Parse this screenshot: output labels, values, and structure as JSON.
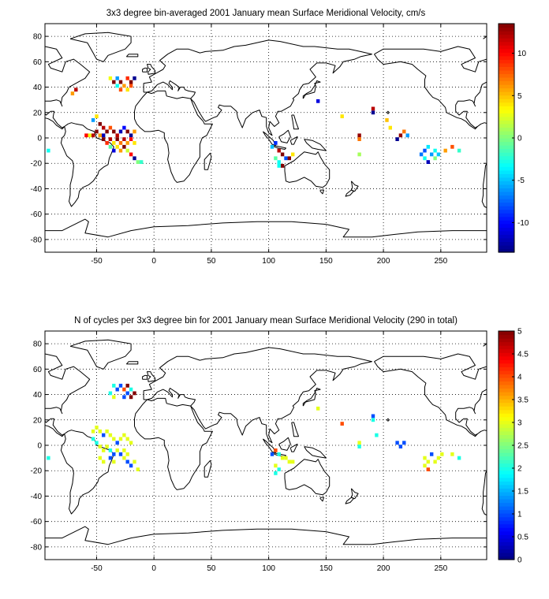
{
  "chart_data": [
    {
      "type": "heatmap",
      "title": "3x3 degree bin-averaged 2001 January mean Surface Meridional Velocity, cm/s",
      "xlabel": "",
      "ylabel": "",
      "xlim": [
        -95,
        290
      ],
      "ylim": [
        -90,
        90
      ],
      "xticks": [
        -50,
        0,
        50,
        100,
        150,
        200,
        250
      ],
      "yticks": [
        -80,
        -60,
        -40,
        -20,
        0,
        20,
        40,
        60,
        80
      ],
      "grid": true,
      "colorbar": {
        "range": [
          -13.5,
          13.5
        ],
        "ticks": [
          -10,
          -5,
          0,
          5,
          10
        ],
        "colormap": "jet"
      },
      "bin_size_deg": 3,
      "cells": [
        [
          -92,
          -10,
          -3
        ],
        [
          -68,
          38,
          12
        ],
        [
          -71,
          35,
          6
        ],
        [
          -38,
          47,
          3
        ],
        [
          -35,
          44,
          14
        ],
        [
          -32,
          47,
          -6
        ],
        [
          -29,
          44,
          14
        ],
        [
          -26,
          41,
          6
        ],
        [
          -32,
          41,
          -3
        ],
        [
          -29,
          38,
          8
        ],
        [
          -23,
          47,
          9
        ],
        [
          -20,
          44,
          14
        ],
        [
          -17,
          47,
          -13
        ],
        [
          -23,
          38,
          4
        ],
        [
          -20,
          41,
          8
        ],
        [
          -50,
          17,
          4
        ],
        [
          -53,
          14,
          -6
        ],
        [
          -47,
          11,
          14
        ],
        [
          -44,
          8,
          12
        ],
        [
          -50,
          5,
          14
        ],
        [
          -53,
          2,
          12
        ],
        [
          -56,
          2,
          3
        ],
        [
          -59,
          2,
          10
        ],
        [
          -47,
          2,
          6
        ],
        [
          -44,
          2,
          -12
        ],
        [
          -41,
          5,
          14
        ],
        [
          -38,
          8,
          8
        ],
        [
          -35,
          5,
          14
        ],
        [
          -32,
          2,
          12
        ],
        [
          -29,
          5,
          -12
        ],
        [
          -26,
          8,
          -10
        ],
        [
          -23,
          5,
          14
        ],
        [
          -20,
          2,
          -13
        ],
        [
          -17,
          5,
          6
        ],
        [
          -44,
          -1,
          14
        ],
        [
          -41,
          -4,
          9
        ],
        [
          -38,
          -1,
          12
        ],
        [
          -35,
          -4,
          4
        ],
        [
          -32,
          -1,
          14
        ],
        [
          -29,
          -4,
          7
        ],
        [
          -26,
          -1,
          12
        ],
        [
          -23,
          -4,
          6
        ],
        [
          -20,
          -1,
          10
        ],
        [
          -17,
          -4,
          4
        ],
        [
          -38,
          -7,
          -1
        ],
        [
          -35,
          -10,
          -11
        ],
        [
          -32,
          -7,
          4
        ],
        [
          -29,
          -10,
          6
        ],
        [
          -26,
          -7,
          14
        ],
        [
          -23,
          -10,
          2
        ],
        [
          -20,
          -13,
          10
        ],
        [
          -17,
          -16,
          -13
        ],
        [
          -14,
          -19,
          0
        ],
        [
          -11,
          -19,
          -2
        ],
        [
          103,
          -7,
          -5
        ],
        [
          106,
          -4,
          -9
        ],
        [
          109,
          -10,
          12
        ],
        [
          112,
          -13,
          14
        ],
        [
          115,
          -16,
          -8
        ],
        [
          118,
          -16,
          14
        ],
        [
          121,
          -13,
          4
        ],
        [
          106,
          -16,
          -1
        ],
        [
          109,
          -19,
          -3
        ],
        [
          112,
          -22,
          14
        ],
        [
          109,
          -22,
          -3
        ],
        [
          143,
          29,
          -11
        ],
        [
          164,
          17,
          4
        ],
        [
          179,
          2,
          13
        ],
        [
          179,
          -1,
          7
        ],
        [
          179,
          -13,
          1
        ],
        [
          191,
          23,
          12
        ],
        [
          191,
          20,
          -13
        ],
        [
          203,
          14,
          5
        ],
        [
          206,
          8,
          4
        ],
        [
          212,
          -1,
          -13
        ],
        [
          215,
          2,
          13
        ],
        [
          221,
          2,
          -6
        ],
        [
          218,
          5,
          7
        ],
        [
          233,
          -13,
          -7
        ],
        [
          236,
          -10,
          -8
        ],
        [
          239,
          -7,
          -4
        ],
        [
          236,
          -16,
          -3
        ],
        [
          239,
          -19,
          -12
        ],
        [
          242,
          -13,
          -6
        ],
        [
          245,
          -10,
          -3
        ],
        [
          248,
          -13,
          -5
        ],
        [
          245,
          -16,
          0
        ],
        [
          254,
          -10,
          6
        ],
        [
          260,
          -7,
          8
        ],
        [
          266,
          -10,
          -2
        ]
      ]
    },
    {
      "type": "heatmap",
      "title": "N of cycles per 3x3 degree bin for 2001 January mean Surface Meridional Velocity (290 in total)",
      "xlabel": "",
      "ylabel": "",
      "xlim": [
        -95,
        290
      ],
      "ylim": [
        -90,
        90
      ],
      "xticks": [
        -50,
        0,
        50,
        100,
        150,
        200,
        250
      ],
      "yticks": [
        -80,
        -60,
        -40,
        -20,
        0,
        20,
        40,
        60,
        80
      ],
      "grid": true,
      "colorbar": {
        "range": [
          0,
          5
        ],
        "ticks": [
          0,
          0.5,
          1,
          1.5,
          2,
          2.5,
          3,
          3.5,
          4,
          4.5,
          5
        ],
        "colormap": "jet"
      },
      "bin_size_deg": 3,
      "cells": [
        [
          -92,
          -10,
          2
        ],
        [
          -35,
          47,
          2
        ],
        [
          -32,
          44,
          1
        ],
        [
          -29,
          47,
          1
        ],
        [
          -26,
          44,
          4
        ],
        [
          -23,
          41,
          1
        ],
        [
          -20,
          44,
          2
        ],
        [
          -23,
          47,
          5
        ],
        [
          -20,
          38,
          5
        ],
        [
          -38,
          41,
          2
        ],
        [
          -35,
          38,
          3
        ],
        [
          -26,
          38,
          1
        ],
        [
          -17,
          41,
          5
        ],
        [
          -53,
          11,
          3
        ],
        [
          -50,
          14,
          3
        ],
        [
          -47,
          11,
          3
        ],
        [
          -44,
          8,
          1
        ],
        [
          -41,
          11,
          3
        ],
        [
          -38,
          8,
          3
        ],
        [
          -35,
          5,
          3
        ],
        [
          -32,
          2,
          1
        ],
        [
          -29,
          5,
          3
        ],
        [
          -26,
          8,
          3
        ],
        [
          -23,
          5,
          3
        ],
        [
          -20,
          2,
          3
        ],
        [
          -53,
          5,
          2
        ],
        [
          -50,
          2,
          2
        ],
        [
          -47,
          -1,
          3
        ],
        [
          -44,
          -4,
          3
        ],
        [
          -41,
          -1,
          3
        ],
        [
          -38,
          -4,
          2
        ],
        [
          -35,
          -7,
          1
        ],
        [
          -32,
          -4,
          3
        ],
        [
          -29,
          -7,
          1
        ],
        [
          -26,
          -4,
          3
        ],
        [
          -23,
          -7,
          3
        ],
        [
          -47,
          -10,
          3
        ],
        [
          -44,
          -13,
          3
        ],
        [
          -38,
          -10,
          1
        ],
        [
          -35,
          -13,
          3
        ],
        [
          -26,
          -10,
          3
        ],
        [
          -23,
          -13,
          1
        ],
        [
          -20,
          -16,
          1
        ],
        [
          -17,
          -13,
          3
        ],
        [
          -14,
          -19,
          3
        ],
        [
          103,
          -7,
          1
        ],
        [
          106,
          -4,
          4
        ],
        [
          109,
          -7,
          2
        ],
        [
          112,
          -10,
          3
        ],
        [
          115,
          -10,
          3
        ],
        [
          118,
          -13,
          3
        ],
        [
          121,
          -13,
          3
        ],
        [
          106,
          -16,
          3
        ],
        [
          109,
          -19,
          2
        ],
        [
          106,
          -22,
          2
        ],
        [
          143,
          29,
          3
        ],
        [
          164,
          17,
          4
        ],
        [
          179,
          2,
          3
        ],
        [
          179,
          -1,
          2
        ],
        [
          191,
          23,
          1
        ],
        [
          191,
          20,
          2
        ],
        [
          194,
          8,
          2
        ],
        [
          212,
          2,
          1
        ],
        [
          218,
          2,
          1
        ],
        [
          215,
          -1,
          1
        ],
        [
          236,
          -16,
          3
        ],
        [
          239,
          -13,
          3
        ],
        [
          236,
          -10,
          3
        ],
        [
          239,
          -19,
          4
        ],
        [
          242,
          -7,
          1
        ],
        [
          245,
          -13,
          3
        ],
        [
          248,
          -10,
          3
        ],
        [
          251,
          -7,
          3
        ],
        [
          260,
          -7,
          3
        ],
        [
          266,
          -10,
          2
        ]
      ]
    }
  ]
}
